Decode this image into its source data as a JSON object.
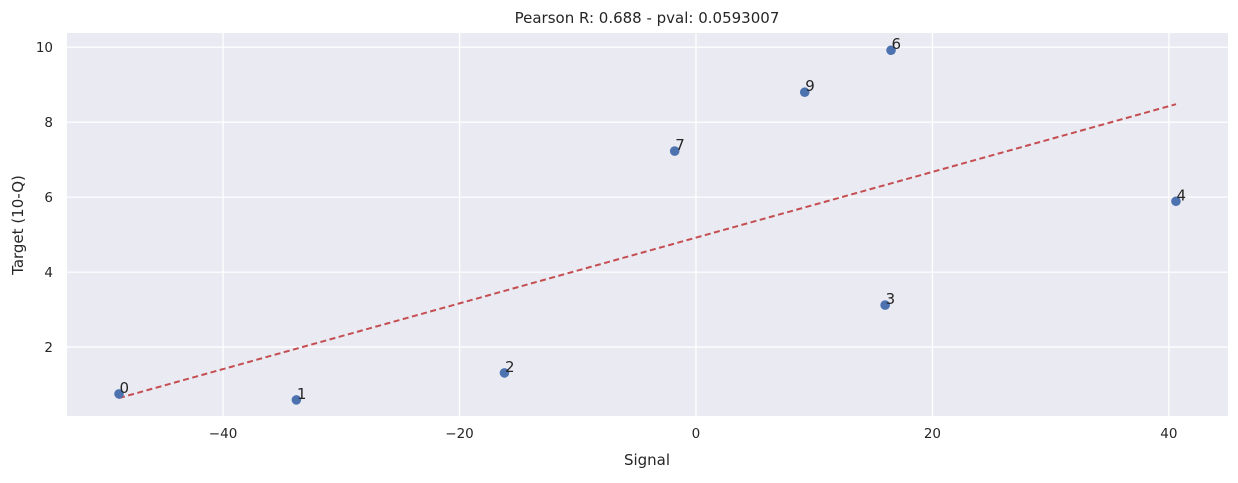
{
  "chart_data": {
    "type": "scatter",
    "title": "Pearson R: 0.688 - pval: 0.0593007",
    "xlabel": "Signal",
    "ylabel": "Target (10-Q)",
    "xlim": [
      -53.2,
      45.0
    ],
    "ylim": [
      0.16,
      10.38
    ],
    "xticks": [
      -40,
      -20,
      0,
      20,
      40
    ],
    "xtick_labels": [
      "−40",
      "−20",
      "0",
      "20",
      "40"
    ],
    "yticks": [
      2,
      4,
      6,
      8,
      10
    ],
    "ytick_labels": [
      "2",
      "4",
      "6",
      "8",
      "10"
    ],
    "grid": true,
    "points": [
      {
        "label": "0",
        "x": -48.8,
        "y": 0.75
      },
      {
        "label": "1",
        "x": -33.8,
        "y": 0.59
      },
      {
        "label": "2",
        "x": -16.2,
        "y": 1.31
      },
      {
        "label": "3",
        "x": 16.0,
        "y": 3.12
      },
      {
        "label": "4",
        "x": 40.6,
        "y": 5.89
      },
      {
        "label": "6",
        "x": 16.5,
        "y": 9.92
      },
      {
        "label": "7",
        "x": -1.8,
        "y": 7.23
      },
      {
        "label": "9",
        "x": 9.2,
        "y": 8.8
      }
    ],
    "trendline": {
      "x": [
        -48.8,
        40.6
      ],
      "y": [
        0.64,
        8.48
      ],
      "style": "dashed"
    },
    "colors": {
      "points": "#4c72b0",
      "trendline": "#c44e52",
      "background": "#eaeaf2",
      "grid": "#ffffff"
    }
  }
}
